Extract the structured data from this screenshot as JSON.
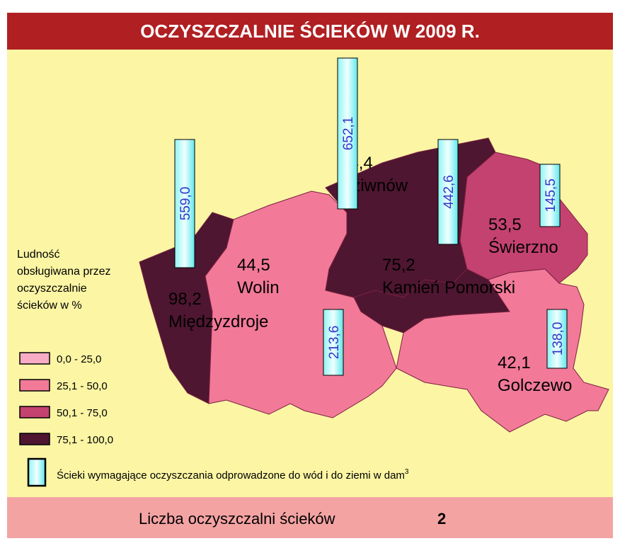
{
  "title": "OCZYSZCZALNIE ŚCIEKÓW W 2009 R.",
  "regions": [
    {
      "name": "Międzyzdroje",
      "value": "98,2",
      "color": "#4e1630"
    },
    {
      "name": "Wolin",
      "value": "44,5",
      "color": "#f27a98"
    },
    {
      "name": "Dziwnów",
      "value": "94,4",
      "color": "#4e1630"
    },
    {
      "name": "Kamień Pomorski",
      "value": "75,2",
      "color": "#4e1630"
    },
    {
      "name": "Świerzno",
      "value": "53,5",
      "color": "#c4426f"
    },
    {
      "name": "Golczewo",
      "value": "42,1",
      "color": "#f27a98"
    }
  ],
  "bars": [
    "559,0",
    "652,1",
    "442,6",
    "213,6",
    "145,5",
    "138,0"
  ],
  "legend": {
    "title": "Ludność obsługiwana przez oczyszczalnie ścieków w %",
    "items": [
      {
        "label": "0,0 - 25,0",
        "color": "#f8abc4"
      },
      {
        "label": "25,1 - 50,0",
        "color": "#f27a98"
      },
      {
        "label": "50,1 - 75,0",
        "color": "#c4426f"
      },
      {
        "label": "75,1 - 100,0",
        "color": "#4e1630"
      }
    ],
    "bar_note": "Ścieki wymagające oczyszczania odprowadzone do wód i do ziemi w dam",
    "bar_note_sup": "3"
  },
  "footer": {
    "label": "Liczba oczyszczalni ścieków",
    "value": "2"
  }
}
